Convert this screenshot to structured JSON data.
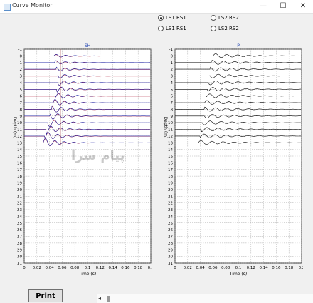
{
  "window": {
    "title": "Curve Monitor",
    "buttons": {
      "minimize": "—",
      "maximize": "☐",
      "close": "✕"
    }
  },
  "options": [
    {
      "label": "LS1 RS1",
      "checked": true
    },
    {
      "label": "LS2 RS2",
      "checked": false
    },
    {
      "label": "LS1 RS1",
      "checked": false
    },
    {
      "label": "LS2 RS2",
      "checked": false
    }
  ],
  "chart_data": [
    {
      "type": "line",
      "title": "SH",
      "xlabel": "Time (s)",
      "ylabel": "Depth (m)",
      "xlim": [
        0,
        0.2
      ],
      "ylim": [
        -1,
        31
      ],
      "x_ticks": [
        "0",
        "0.02",
        "0.04",
        "0.06",
        "0.08",
        "0.1",
        "0.12",
        "0.14",
        "0.16",
        "0.18",
        "0.2"
      ],
      "y_ticks": [
        "-1",
        "0",
        "1",
        "2",
        "3",
        "4",
        "5",
        "6",
        "7",
        "8",
        "9",
        "10",
        "11",
        "12",
        "13",
        "14",
        "15",
        "16",
        "17",
        "18",
        "19",
        "20",
        "21",
        "22",
        "23",
        "24",
        "25",
        "26",
        "27",
        "28",
        "29",
        "30",
        "31"
      ],
      "trace_depths": [
        0,
        1,
        2,
        3,
        4,
        5,
        6,
        7,
        8,
        9,
        10,
        11,
        12,
        13
      ],
      "arrival_times_s": [
        0.047,
        0.049,
        0.051,
        0.053,
        0.054,
        0.052,
        0.05,
        0.047,
        0.044,
        0.041,
        0.038,
        0.035,
        0.033,
        0.031
      ],
      "pick_line_time_s": 0.057,
      "grid": true
    },
    {
      "type": "line",
      "title": "P",
      "xlabel": "Time (s)",
      "ylabel": "Depth (m)",
      "xlim": [
        0,
        0.2
      ],
      "ylim": [
        -1,
        31
      ],
      "x_ticks": [
        "0",
        "0.02",
        "0.04",
        "0.06",
        "0.08",
        "0.1",
        "0.12",
        "0.14",
        "0.16",
        "0.18",
        "0.2"
      ],
      "y_ticks": [
        "-1",
        "0",
        "1",
        "2",
        "3",
        "4",
        "5",
        "6",
        "7",
        "8",
        "9",
        "10",
        "11",
        "12",
        "13",
        "14",
        "15",
        "16",
        "17",
        "18",
        "19",
        "20",
        "21",
        "22",
        "23",
        "24",
        "25",
        "26",
        "27",
        "28",
        "29",
        "30",
        "31"
      ],
      "trace_depths": [
        0,
        1,
        2,
        3,
        4,
        5,
        6,
        7,
        8,
        9,
        10,
        11,
        12,
        13
      ],
      "arrival_times_s": [
        0.06,
        0.058,
        0.056,
        0.055,
        0.054,
        0.052,
        0.05,
        0.048,
        0.047,
        0.045,
        0.044,
        0.042,
        0.04,
        0.038
      ],
      "grid": true
    }
  ],
  "watermark": "پیام سرا",
  "print_label": "Print",
  "scroll_left": "◂"
}
